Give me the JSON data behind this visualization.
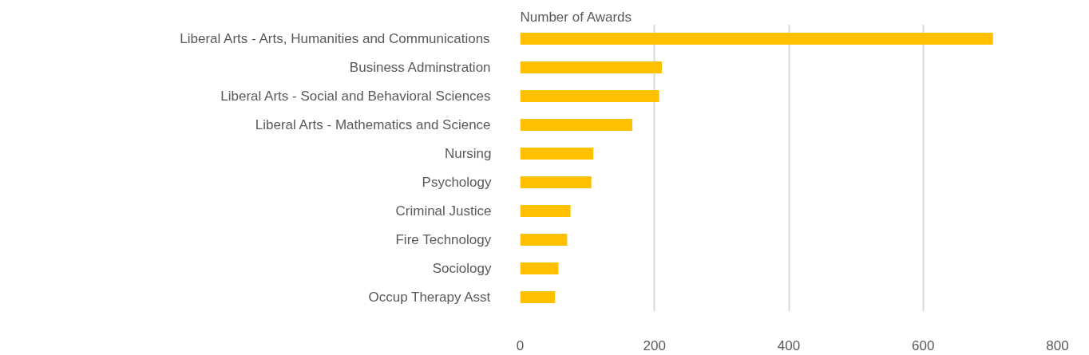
{
  "chart_data": {
    "type": "bar",
    "orientation": "horizontal",
    "title": "Number of Awards",
    "categories": [
      "Liberal Arts - Arts, Humanities and Communications",
      "Business Adminstration",
      "Liberal Arts - Social and Behavioral Sciences",
      "Liberal Arts - Mathematics and Science",
      "Nursing",
      "Psychology",
      "Criminal Justice",
      "Fire Technology",
      "Sociology",
      "Occup Therapy Asst"
    ],
    "values": [
      704,
      211,
      207,
      167,
      109,
      106,
      75,
      70,
      57,
      52
    ],
    "color": "#ffc000",
    "xlim": [
      0,
      800
    ],
    "xticks": [
      0,
      200,
      400,
      600,
      800
    ],
    "grid": "x"
  }
}
